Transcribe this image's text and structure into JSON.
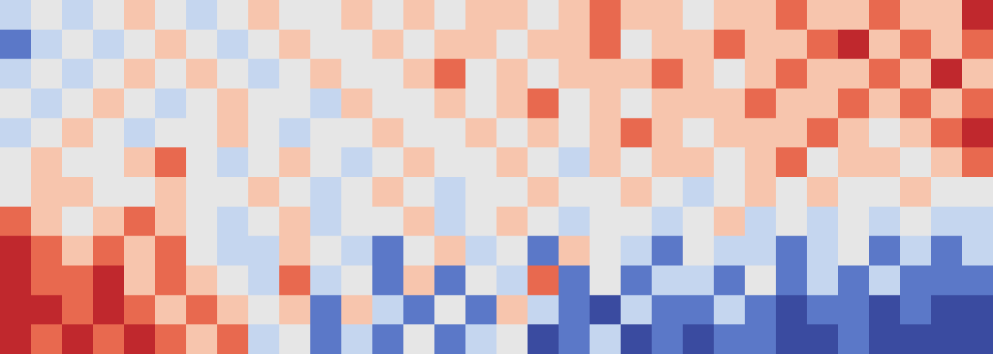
{
  "chart_data": {
    "type": "heatmap",
    "zlim": [
      -3,
      3
    ],
    "colors": [
      "#3a4ba0",
      "#5b78c8",
      "#c5d6ef",
      "#e6e6e6",
      "#f7c5ad",
      "#e8694f",
      "#c0282d"
    ],
    "values": [
      [
        -1,
        0,
        -1,
        0,
        1,
        0,
        -1,
        0,
        1,
        0,
        0,
        1,
        0,
        1,
        0,
        1,
        1,
        0,
        1,
        2,
        1,
        1,
        0,
        1,
        1,
        2,
        1,
        1,
        2,
        1,
        1,
        3
      ],
      [
        -2,
        -1,
        0,
        -1,
        0,
        1,
        0,
        -1,
        0,
        1,
        0,
        0,
        1,
        0,
        1,
        1,
        0,
        1,
        1,
        2,
        0,
        1,
        1,
        2,
        1,
        1,
        2,
        3,
        1,
        2,
        1,
        2
      ],
      [
        -1,
        0,
        -1,
        0,
        1,
        0,
        1,
        0,
        -1,
        0,
        1,
        0,
        0,
        1,
        2,
        0,
        1,
        0,
        1,
        1,
        1,
        2,
        1,
        0,
        1,
        2,
        1,
        1,
        2,
        1,
        3,
        1
      ],
      [
        0,
        -1,
        0,
        1,
        0,
        -1,
        0,
        1,
        0,
        0,
        -1,
        1,
        0,
        0,
        1,
        0,
        1,
        2,
        0,
        1,
        0,
        1,
        1,
        1,
        2,
        1,
        1,
        2,
        1,
        2,
        1,
        2
      ],
      [
        -1,
        0,
        1,
        0,
        -1,
        0,
        0,
        1,
        0,
        -1,
        0,
        0,
        1,
        0,
        0,
        1,
        0,
        1,
        0,
        1,
        2,
        1,
        0,
        1,
        1,
        1,
        2,
        1,
        0,
        1,
        2,
        3
      ],
      [
        0,
        1,
        0,
        0,
        1,
        2,
        0,
        -1,
        0,
        1,
        0,
        -1,
        0,
        1,
        0,
        0,
        1,
        0,
        -1,
        1,
        0,
        1,
        1,
        0,
        1,
        2,
        0,
        1,
        1,
        0,
        1,
        2
      ],
      [
        0,
        1,
        1,
        0,
        0,
        1,
        0,
        0,
        1,
        0,
        -1,
        0,
        1,
        0,
        -1,
        0,
        0,
        1,
        0,
        0,
        1,
        0,
        -1,
        0,
        1,
        0,
        1,
        0,
        0,
        1,
        0,
        0
      ],
      [
        2,
        1,
        0,
        1,
        2,
        1,
        0,
        -1,
        0,
        1,
        -1,
        0,
        0,
        1,
        -1,
        0,
        1,
        0,
        -1,
        0,
        0,
        -1,
        0,
        1,
        -1,
        0,
        -1,
        0,
        -1,
        0,
        -1,
        -1
      ],
      [
        3,
        2,
        1,
        2,
        1,
        2,
        0,
        -1,
        -1,
        1,
        0,
        -1,
        -2,
        0,
        1,
        -1,
        0,
        -2,
        1,
        0,
        -1,
        -2,
        0,
        -1,
        -1,
        -2,
        -1,
        0,
        -2,
        -1,
        -2,
        -1
      ],
      [
        3,
        2,
        2,
        3,
        1,
        2,
        1,
        0,
        -1,
        2,
        -1,
        0,
        -2,
        1,
        -2,
        0,
        -1,
        2,
        -2,
        0,
        -2,
        -1,
        -1,
        -2,
        0,
        -2,
        -1,
        -2,
        -1,
        -2,
        -2,
        -2
      ],
      [
        3,
        3,
        2,
        3,
        2,
        1,
        2,
        1,
        0,
        1,
        -2,
        1,
        -1,
        -2,
        0,
        -2,
        1,
        -1,
        -2,
        -3,
        -1,
        -2,
        -2,
        -1,
        -2,
        -3,
        -2,
        -2,
        -3,
        -2,
        -3,
        -3
      ],
      [
        3,
        2,
        3,
        2,
        3,
        2,
        1,
        2,
        -1,
        0,
        -2,
        -1,
        -2,
        0,
        -2,
        -1,
        0,
        -3,
        -2,
        -1,
        -3,
        -2,
        -3,
        -2,
        -2,
        -3,
        -3,
        -2,
        -3,
        -3,
        -3,
        -3
      ]
    ]
  }
}
